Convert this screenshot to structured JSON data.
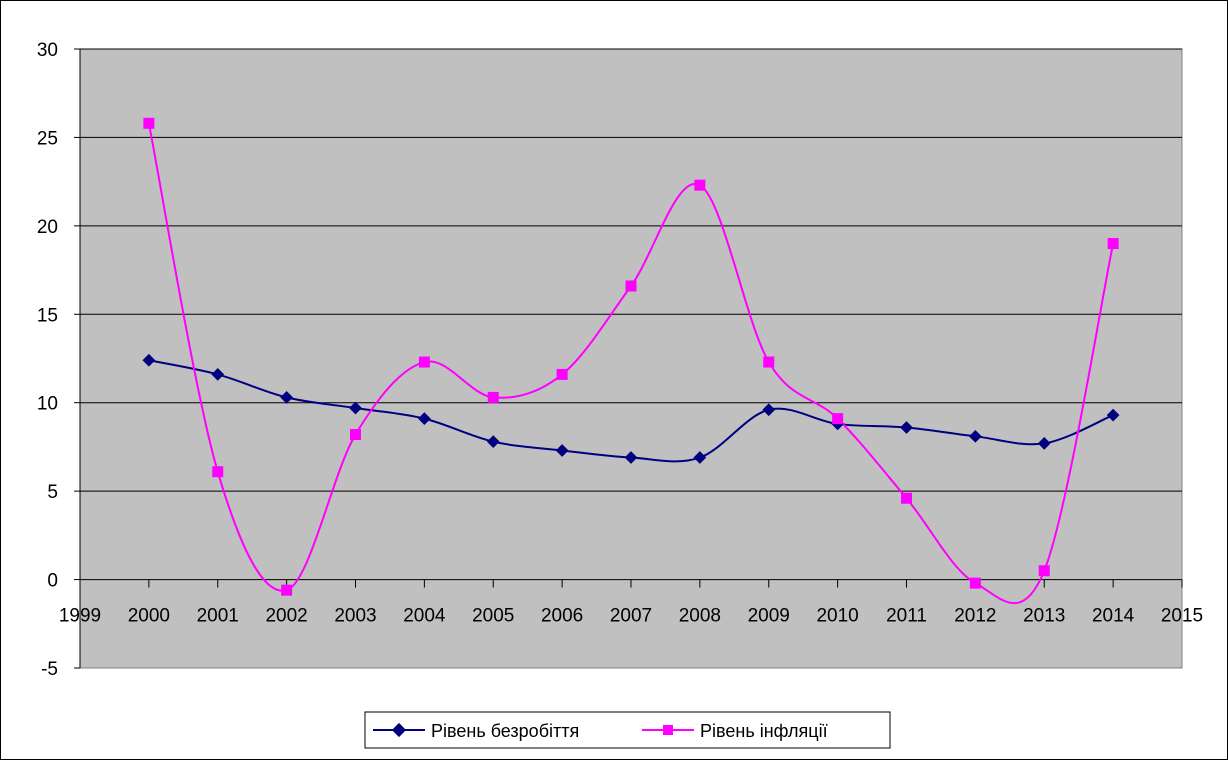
{
  "chart_data": {
    "type": "line",
    "title": "",
    "xlabel": "",
    "ylabel": "",
    "x_ticks": [
      "1999",
      "2000",
      "2001",
      "2002",
      "2003",
      "2004",
      "2005",
      "2006",
      "2007",
      "2008",
      "2009",
      "2010",
      "2011",
      "2012",
      "2013",
      "2014",
      "2015"
    ],
    "y_ticks": [
      "30",
      "25",
      "20",
      "15",
      "10",
      "5",
      "0",
      "-5"
    ],
    "xlim": [
      1999,
      2015
    ],
    "ylim": [
      -5,
      30
    ],
    "grid": "horizontal",
    "smooth": true,
    "plot_background": "#c0c0c0",
    "legend_position": "bottom",
    "x": [
      2000,
      2001,
      2002,
      2003,
      2004,
      2005,
      2006,
      2007,
      2008,
      2009,
      2010,
      2011,
      2012,
      2013,
      2014
    ],
    "series": [
      {
        "name": "Рівень безробіття",
        "color": "#000080",
        "marker": "diamond",
        "values": [
          12.4,
          11.6,
          10.3,
          9.7,
          9.1,
          7.8,
          7.3,
          6.9,
          6.9,
          9.6,
          8.8,
          8.6,
          8.1,
          7.7,
          9.3
        ]
      },
      {
        "name": "Рівень інфляції",
        "color": "#ff00ff",
        "marker": "square",
        "values": [
          25.8,
          6.1,
          -0.6,
          8.2,
          12.3,
          10.3,
          11.6,
          16.6,
          22.3,
          12.3,
          9.1,
          4.6,
          -0.2,
          0.5,
          19.0
        ]
      }
    ]
  }
}
